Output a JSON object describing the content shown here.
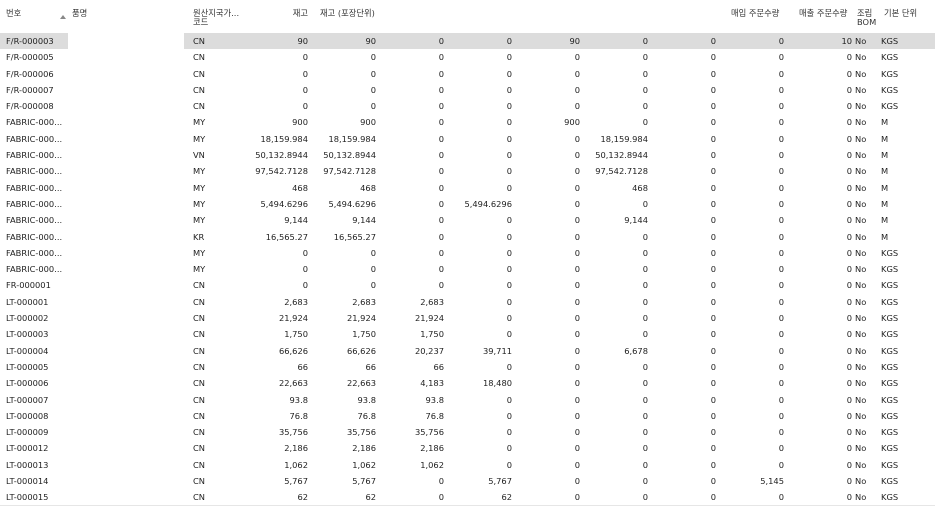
{
  "headers": {
    "no": "번호",
    "name": "품명",
    "country_line1": "원산지국가...",
    "country_line2": "코드",
    "stock": "재고",
    "stock_pack": "재고 (포장단위)",
    "purchase_qty": "매입 주문수량",
    "sales_qty": "매출 주문수량",
    "assembly_line1": "조립",
    "assembly_line2": "BOM",
    "base_unit": "기본 단위"
  },
  "rows": [
    {
      "no": "F/R-000003",
      "name": "",
      "country": "CN",
      "stock": "90",
      "stock_pack": "90",
      "c3": "0",
      "c4": "0",
      "c5": "90",
      "c6": "0",
      "c7": "0",
      "purchase": "0",
      "sales": "10",
      "bom": "No",
      "unit": "KGS",
      "selected": true
    },
    {
      "no": "F/R-000005",
      "name": "",
      "country": "CN",
      "stock": "0",
      "stock_pack": "0",
      "c3": "0",
      "c4": "0",
      "c5": "0",
      "c6": "0",
      "c7": "0",
      "purchase": "0",
      "sales": "0",
      "bom": "No",
      "unit": "KGS"
    },
    {
      "no": "F/R-000006",
      "name": "",
      "country": "CN",
      "stock": "0",
      "stock_pack": "0",
      "c3": "0",
      "c4": "0",
      "c5": "0",
      "c6": "0",
      "c7": "0",
      "purchase": "0",
      "sales": "0",
      "bom": "No",
      "unit": "KGS"
    },
    {
      "no": "F/R-000007",
      "name": "",
      "country": "CN",
      "stock": "0",
      "stock_pack": "0",
      "c3": "0",
      "c4": "0",
      "c5": "0",
      "c6": "0",
      "c7": "0",
      "purchase": "0",
      "sales": "0",
      "bom": "No",
      "unit": "KGS"
    },
    {
      "no": "F/R-000008",
      "name": "",
      "country": "CN",
      "stock": "0",
      "stock_pack": "0",
      "c3": "0",
      "c4": "0",
      "c5": "0",
      "c6": "0",
      "c7": "0",
      "purchase": "0",
      "sales": "0",
      "bom": "No",
      "unit": "KGS"
    },
    {
      "no": "FABRIC-000...",
      "name": "",
      "country": "MY",
      "stock": "900",
      "stock_pack": "900",
      "c3": "0",
      "c4": "0",
      "c5": "900",
      "c6": "0",
      "c7": "0",
      "purchase": "0",
      "sales": "0",
      "bom": "No",
      "unit": "M"
    },
    {
      "no": "FABRIC-000...",
      "name": "",
      "country": "MY",
      "stock": "18,159.984",
      "stock_pack": "18,159.984",
      "c3": "0",
      "c4": "0",
      "c5": "0",
      "c6": "18,159.984",
      "c7": "0",
      "purchase": "0",
      "sales": "0",
      "bom": "No",
      "unit": "M"
    },
    {
      "no": "FABRIC-000...",
      "name": "",
      "country": "VN",
      "stock": "50,132.8944",
      "stock_pack": "50,132.8944",
      "c3": "0",
      "c4": "0",
      "c5": "0",
      "c6": "50,132.8944",
      "c7": "0",
      "purchase": "0",
      "sales": "0",
      "bom": "No",
      "unit": "M"
    },
    {
      "no": "FABRIC-000...",
      "name": "",
      "country": "MY",
      "stock": "97,542.7128",
      "stock_pack": "97,542.7128",
      "c3": "0",
      "c4": "0",
      "c5": "0",
      "c6": "97,542.7128",
      "c7": "0",
      "purchase": "0",
      "sales": "0",
      "bom": "No",
      "unit": "M"
    },
    {
      "no": "FABRIC-000...",
      "name": "",
      "country": "MY",
      "stock": "468",
      "stock_pack": "468",
      "c3": "0",
      "c4": "0",
      "c5": "0",
      "c6": "468",
      "c7": "0",
      "purchase": "0",
      "sales": "0",
      "bom": "No",
      "unit": "M"
    },
    {
      "no": "FABRIC-000...",
      "name": "",
      "country": "MY",
      "stock": "5,494.6296",
      "stock_pack": "5,494.6296",
      "c3": "0",
      "c4": "5,494.6296",
      "c5": "0",
      "c6": "0",
      "c7": "0",
      "purchase": "0",
      "sales": "0",
      "bom": "No",
      "unit": "M"
    },
    {
      "no": "FABRIC-000...",
      "name": "",
      "country": "MY",
      "stock": "9,144",
      "stock_pack": "9,144",
      "c3": "0",
      "c4": "0",
      "c5": "0",
      "c6": "9,144",
      "c7": "0",
      "purchase": "0",
      "sales": "0",
      "bom": "No",
      "unit": "M"
    },
    {
      "no": "FABRIC-000...",
      "name": "",
      "country": "KR",
      "stock": "16,565.27",
      "stock_pack": "16,565.27",
      "c3": "0",
      "c4": "0",
      "c5": "0",
      "c6": "0",
      "c7": "0",
      "purchase": "0",
      "sales": "0",
      "bom": "No",
      "unit": "M"
    },
    {
      "no": "FABRIC-000...",
      "name": "",
      "country": "MY",
      "stock": "0",
      "stock_pack": "0",
      "c3": "0",
      "c4": "0",
      "c5": "0",
      "c6": "0",
      "c7": "0",
      "purchase": "0",
      "sales": "0",
      "bom": "No",
      "unit": "KGS"
    },
    {
      "no": "FABRIC-000...",
      "name": "",
      "country": "MY",
      "stock": "0",
      "stock_pack": "0",
      "c3": "0",
      "c4": "0",
      "c5": "0",
      "c6": "0",
      "c7": "0",
      "purchase": "0",
      "sales": "0",
      "bom": "No",
      "unit": "KGS"
    },
    {
      "no": "FR-000001",
      "name": "",
      "country": "CN",
      "stock": "0",
      "stock_pack": "0",
      "c3": "0",
      "c4": "0",
      "c5": "0",
      "c6": "0",
      "c7": "0",
      "purchase": "0",
      "sales": "0",
      "bom": "No",
      "unit": "KGS"
    },
    {
      "no": "LT-000001",
      "name": "",
      "country": "CN",
      "stock": "2,683",
      "stock_pack": "2,683",
      "c3": "2,683",
      "c4": "0",
      "c5": "0",
      "c6": "0",
      "c7": "0",
      "purchase": "0",
      "sales": "0",
      "bom": "No",
      "unit": "KGS"
    },
    {
      "no": "LT-000002",
      "name": "",
      "country": "CN",
      "stock": "21,924",
      "stock_pack": "21,924",
      "c3": "21,924",
      "c4": "0",
      "c5": "0",
      "c6": "0",
      "c7": "0",
      "purchase": "0",
      "sales": "0",
      "bom": "No",
      "unit": "KGS"
    },
    {
      "no": "LT-000003",
      "name": "",
      "country": "CN",
      "stock": "1,750",
      "stock_pack": "1,750",
      "c3": "1,750",
      "c4": "0",
      "c5": "0",
      "c6": "0",
      "c7": "0",
      "purchase": "0",
      "sales": "0",
      "bom": "No",
      "unit": "KGS"
    },
    {
      "no": "LT-000004",
      "name": "",
      "country": "CN",
      "stock": "66,626",
      "stock_pack": "66,626",
      "c3": "20,237",
      "c4": "39,711",
      "c5": "0",
      "c6": "6,678",
      "c7": "0",
      "purchase": "0",
      "sales": "0",
      "bom": "No",
      "unit": "KGS"
    },
    {
      "no": "LT-000005",
      "name": "",
      "country": "CN",
      "stock": "66",
      "stock_pack": "66",
      "c3": "66",
      "c4": "0",
      "c5": "0",
      "c6": "0",
      "c7": "0",
      "purchase": "0",
      "sales": "0",
      "bom": "No",
      "unit": "KGS"
    },
    {
      "no": "LT-000006",
      "name": "",
      "country": "CN",
      "stock": "22,663",
      "stock_pack": "22,663",
      "c3": "4,183",
      "c4": "18,480",
      "c5": "0",
      "c6": "0",
      "c7": "0",
      "purchase": "0",
      "sales": "0",
      "bom": "No",
      "unit": "KGS"
    },
    {
      "no": "LT-000007",
      "name": "",
      "country": "CN",
      "stock": "93.8",
      "stock_pack": "93.8",
      "c3": "93.8",
      "c4": "0",
      "c5": "0",
      "c6": "0",
      "c7": "0",
      "purchase": "0",
      "sales": "0",
      "bom": "No",
      "unit": "KGS"
    },
    {
      "no": "LT-000008",
      "name": "",
      "country": "CN",
      "stock": "76.8",
      "stock_pack": "76.8",
      "c3": "76.8",
      "c4": "0",
      "c5": "0",
      "c6": "0",
      "c7": "0",
      "purchase": "0",
      "sales": "0",
      "bom": "No",
      "unit": "KGS"
    },
    {
      "no": "LT-000009",
      "name": "",
      "country": "CN",
      "stock": "35,756",
      "stock_pack": "35,756",
      "c3": "35,756",
      "c4": "0",
      "c5": "0",
      "c6": "0",
      "c7": "0",
      "purchase": "0",
      "sales": "0",
      "bom": "No",
      "unit": "KGS"
    },
    {
      "no": "LT-000012",
      "name": "",
      "country": "CN",
      "stock": "2,186",
      "stock_pack": "2,186",
      "c3": "2,186",
      "c4": "0",
      "c5": "0",
      "c6": "0",
      "c7": "0",
      "purchase": "0",
      "sales": "0",
      "bom": "No",
      "unit": "KGS"
    },
    {
      "no": "LT-000013",
      "name": "",
      "country": "CN",
      "stock": "1,062",
      "stock_pack": "1,062",
      "c3": "1,062",
      "c4": "0",
      "c5": "0",
      "c6": "0",
      "c7": "0",
      "purchase": "0",
      "sales": "0",
      "bom": "No",
      "unit": "KGS"
    },
    {
      "no": "LT-000014",
      "name": "",
      "country": "CN",
      "stock": "5,767",
      "stock_pack": "5,767",
      "c3": "0",
      "c4": "5,767",
      "c5": "0",
      "c6": "0",
      "c7": "0",
      "purchase": "5,145",
      "sales": "0",
      "bom": "No",
      "unit": "KGS"
    },
    {
      "no": "LT-000015",
      "name": "",
      "country": "CN",
      "stock": "62",
      "stock_pack": "62",
      "c3": "0",
      "c4": "62",
      "c5": "0",
      "c6": "0",
      "c7": "0",
      "purchase": "0",
      "sales": "0",
      "bom": "No",
      "unit": "KGS"
    }
  ]
}
